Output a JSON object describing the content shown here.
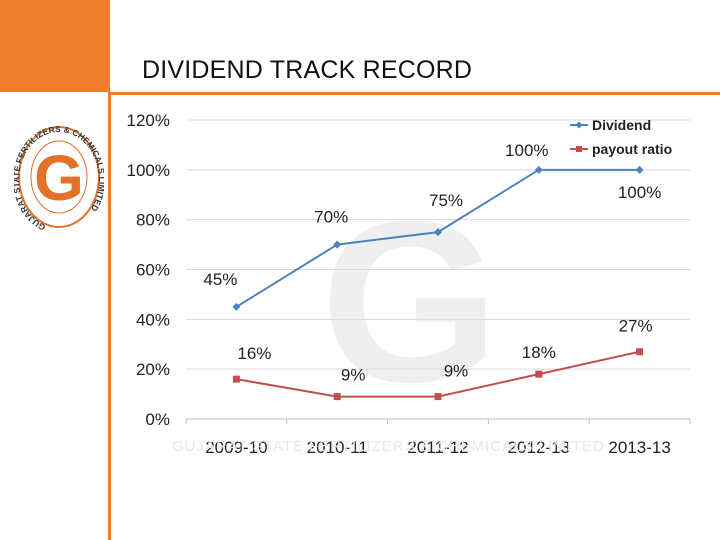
{
  "slide": {
    "title": "DIVIDEND TRACK RECORD"
  },
  "logo": {
    "letter": "G",
    "ring_text": "GUJARAT STATE FERTILIZERS & CHEMICALS LIMITED",
    "colors": {
      "ring": "#e2712a",
      "letter": "#e2712a"
    }
  },
  "watermark": {
    "letter": "G",
    "text": "GUJARAT STATE FERTILIZERS & CHEMICALS LIMITED"
  },
  "colors": {
    "accent": "#ef7d2d",
    "dividend": "#4f81bd",
    "payout": "#c0504d"
  },
  "chart_data": {
    "type": "line",
    "title": "",
    "xlabel": "",
    "ylabel": "",
    "categories": [
      "2009-10",
      "2010-11",
      "2011-12",
      "2012-13",
      "2013-13"
    ],
    "ylim": [
      0,
      120
    ],
    "yticks": [
      0,
      20,
      40,
      60,
      80,
      100,
      120
    ],
    "ytick_labels": [
      "0%",
      "20%",
      "40%",
      "60%",
      "80%",
      "100%",
      "120%"
    ],
    "grid": true,
    "legend": "top-right",
    "series": [
      {
        "name": "Dividend",
        "values": [
          45,
          70,
          75,
          100,
          100
        ],
        "labels": [
          "45%",
          "70%",
          "75%",
          "100%",
          "100%"
        ],
        "color": "#4f81bd",
        "marker": "diamond"
      },
      {
        "name": "payout ratio",
        "values": [
          16,
          9,
          9,
          18,
          27
        ],
        "labels": [
          "16%",
          "9%",
          "9%",
          "18%",
          "27%"
        ],
        "color": "#c0504d",
        "marker": "square"
      }
    ]
  }
}
